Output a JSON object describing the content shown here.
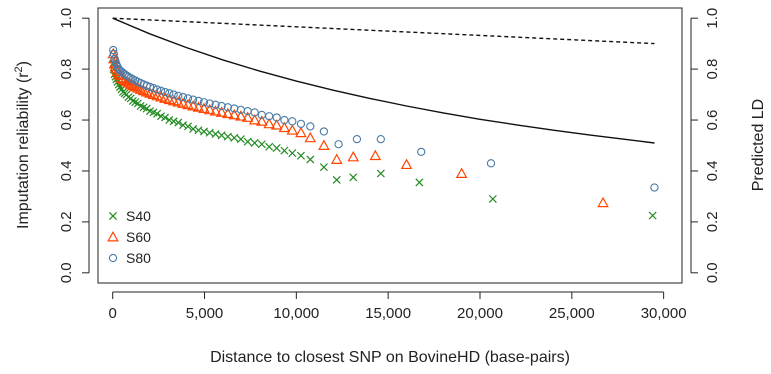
{
  "chart_data": {
    "type": "scatter",
    "xlabel": "Distance to closest SNP on BovineHD (base-pairs)",
    "ylabel": "Imputation reliability (r",
    "ylabel_sup": "2",
    "ylabel_close": ")",
    "y2label": "Predicted LD",
    "xlim": [
      -800,
      31000
    ],
    "ylim": [
      -0.04,
      1.04
    ],
    "x_ticks": [
      0,
      5000,
      10000,
      15000,
      20000,
      25000,
      30000
    ],
    "x_tick_labels": [
      "0",
      "5,000",
      "10,000",
      "15,000",
      "20,000",
      "25,000",
      "30,000"
    ],
    "y_ticks": [
      0.0,
      0.2,
      0.4,
      0.6,
      0.8,
      1.0
    ],
    "y_tick_labels": [
      "0.0",
      "0.2",
      "0.4",
      "0.6",
      "0.8",
      "1.0"
    ],
    "legend_position": "bottom-left",
    "grid": false,
    "series": [
      {
        "name": "S40",
        "marker": "x",
        "color": "#228b22",
        "x": [
          30,
          60,
          100,
          150,
          200,
          260,
          330,
          400,
          480,
          560,
          650,
          750,
          860,
          980,
          1100,
          1230,
          1370,
          1520,
          1680,
          1850,
          2030,
          2220,
          2420,
          2630,
          2850,
          3080,
          3320,
          3570,
          3830,
          4100,
          4380,
          4670,
          4970,
          5280,
          5600,
          5930,
          6270,
          6620,
          6980,
          7350,
          7730,
          8120,
          8520,
          8930,
          9350,
          9780,
          10250,
          10760,
          11500,
          12200,
          13100,
          14600,
          16700,
          20700,
          29400
        ],
        "y": [
          0.82,
          0.8,
          0.78,
          0.77,
          0.76,
          0.75,
          0.74,
          0.73,
          0.72,
          0.71,
          0.705,
          0.7,
          0.69,
          0.685,
          0.675,
          0.67,
          0.665,
          0.655,
          0.65,
          0.645,
          0.635,
          0.63,
          0.625,
          0.615,
          0.61,
          0.6,
          0.595,
          0.59,
          0.58,
          0.575,
          0.565,
          0.56,
          0.555,
          0.55,
          0.545,
          0.54,
          0.535,
          0.53,
          0.525,
          0.515,
          0.51,
          0.505,
          0.495,
          0.49,
          0.48,
          0.47,
          0.46,
          0.445,
          0.415,
          0.365,
          0.375,
          0.39,
          0.355,
          0.29,
          0.225
        ]
      },
      {
        "name": "S60",
        "marker": "triangle",
        "color": "#ff4500",
        "x": [
          30,
          60,
          100,
          150,
          200,
          260,
          330,
          400,
          480,
          560,
          650,
          750,
          860,
          980,
          1100,
          1230,
          1370,
          1520,
          1680,
          1850,
          2030,
          2220,
          2420,
          2630,
          2850,
          3080,
          3320,
          3570,
          3830,
          4100,
          4380,
          4670,
          4970,
          5280,
          5600,
          5930,
          6270,
          6620,
          6980,
          7350,
          7730,
          8120,
          8520,
          8930,
          9350,
          9780,
          10250,
          10760,
          11500,
          12200,
          13100,
          14300,
          16000,
          19000,
          26700
        ],
        "y": [
          0.86,
          0.84,
          0.82,
          0.81,
          0.8,
          0.79,
          0.78,
          0.775,
          0.765,
          0.76,
          0.755,
          0.75,
          0.745,
          0.74,
          0.735,
          0.73,
          0.725,
          0.72,
          0.715,
          0.71,
          0.705,
          0.7,
          0.695,
          0.69,
          0.685,
          0.68,
          0.675,
          0.67,
          0.665,
          0.66,
          0.655,
          0.65,
          0.645,
          0.64,
          0.635,
          0.63,
          0.625,
          0.62,
          0.615,
          0.61,
          0.6,
          0.595,
          0.585,
          0.58,
          0.57,
          0.56,
          0.55,
          0.53,
          0.5,
          0.445,
          0.455,
          0.46,
          0.425,
          0.39,
          0.275
        ]
      },
      {
        "name": "S80",
        "marker": "circle",
        "color": "#4a7ba6",
        "x": [
          30,
          60,
          100,
          150,
          200,
          260,
          330,
          400,
          480,
          560,
          650,
          750,
          860,
          980,
          1100,
          1230,
          1370,
          1520,
          1680,
          1850,
          2030,
          2220,
          2420,
          2630,
          2850,
          3080,
          3320,
          3570,
          3830,
          4100,
          4380,
          4670,
          4970,
          5280,
          5600,
          5930,
          6270,
          6620,
          6980,
          7350,
          7730,
          8120,
          8520,
          8930,
          9350,
          9780,
          10250,
          10760,
          11500,
          12300,
          13300,
          14600,
          16800,
          20600,
          29500
        ],
        "y": [
          0.875,
          0.86,
          0.84,
          0.83,
          0.82,
          0.81,
          0.8,
          0.795,
          0.79,
          0.785,
          0.78,
          0.775,
          0.77,
          0.765,
          0.76,
          0.755,
          0.75,
          0.745,
          0.74,
          0.735,
          0.73,
          0.725,
          0.72,
          0.715,
          0.71,
          0.705,
          0.7,
          0.695,
          0.69,
          0.685,
          0.68,
          0.675,
          0.67,
          0.665,
          0.66,
          0.655,
          0.65,
          0.645,
          0.64,
          0.635,
          0.63,
          0.62,
          0.615,
          0.61,
          0.6,
          0.595,
          0.585,
          0.575,
          0.555,
          0.505,
          0.525,
          0.525,
          0.475,
          0.43,
          0.335
        ]
      }
    ],
    "reference_lines": [
      {
        "style": "solid",
        "x": [
          0,
          2000,
          4000,
          6000,
          8000,
          10000,
          12000,
          14000,
          16000,
          18000,
          20000,
          22000,
          24000,
          26000,
          28000,
          29500
        ],
        "y": [
          1.0,
          0.939,
          0.885,
          0.836,
          0.792,
          0.753,
          0.717,
          0.685,
          0.655,
          0.628,
          0.603,
          0.581,
          0.56,
          0.541,
          0.523,
          0.51
        ]
      },
      {
        "style": "dashed",
        "x": [
          0,
          29500
        ],
        "y": [
          1.0,
          0.9
        ]
      }
    ]
  }
}
